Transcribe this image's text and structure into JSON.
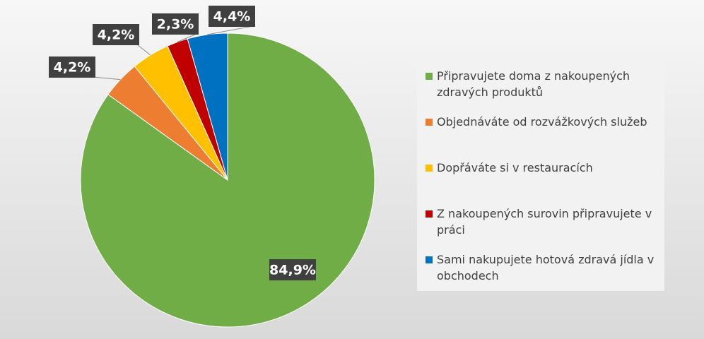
{
  "chart_data": {
    "type": "pie",
    "categories": [
      "Připravujete doma z nakoupených zdravých produktů",
      "Objednáváte od rozvážkových služeb",
      "Dopřáváte si v restauracích",
      "Z nakoupených surovin připravujete v práci",
      "Sami nakupujete hotová zdravá jídla v obchodech"
    ],
    "values": [
      84.9,
      4.2,
      4.2,
      2.3,
      4.4
    ],
    "value_labels": [
      "84,9%",
      "4,2%",
      "4,2%",
      "2,3%",
      "4,4%"
    ],
    "colors": [
      "#70ad47",
      "#ed7d31",
      "#ffc000",
      "#c00000",
      "#0070c0"
    ],
    "legend": "right"
  }
}
